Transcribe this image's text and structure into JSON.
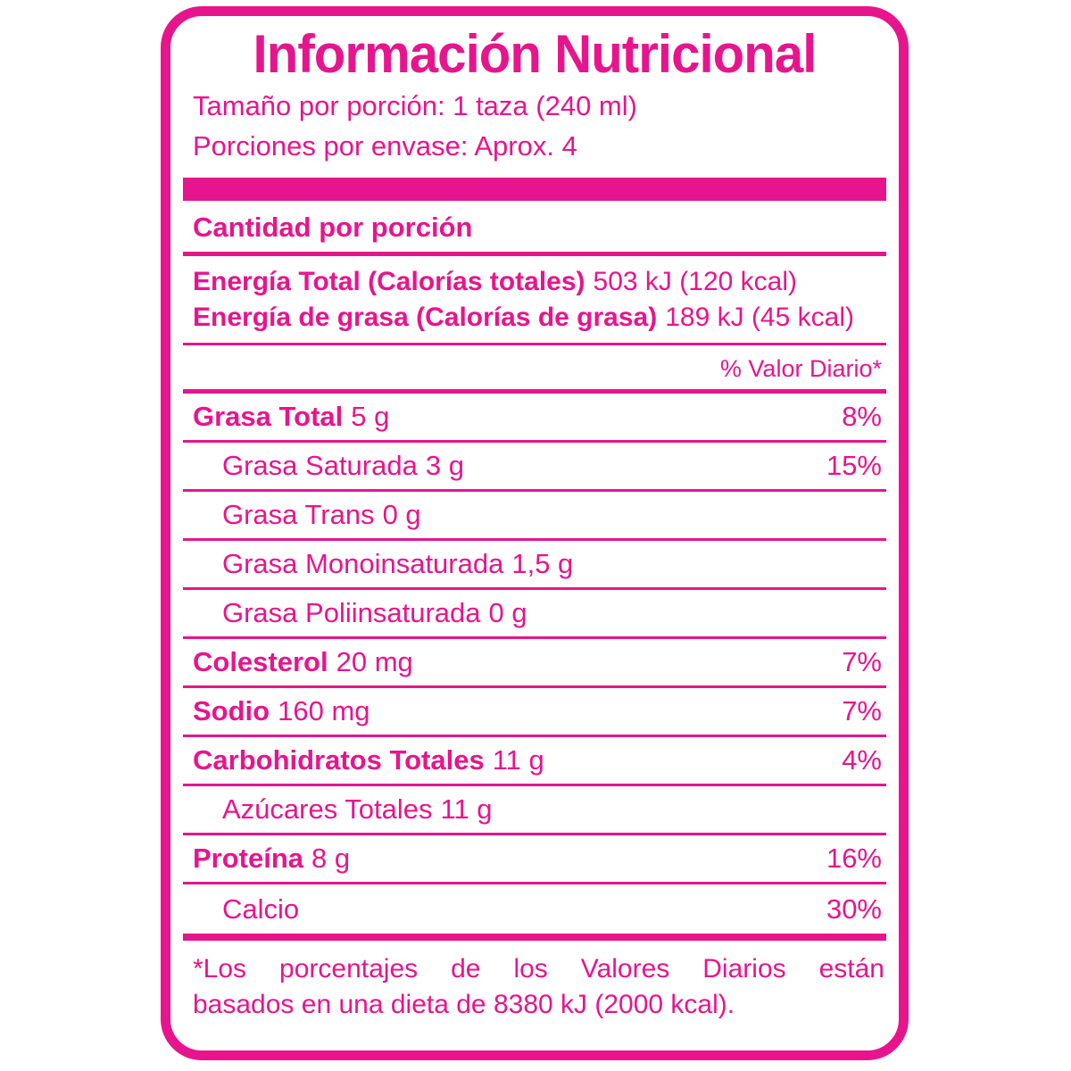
{
  "label": {
    "title": "Información Nutricional",
    "serving_size": "Tamaño por porción: 1 taza (240 ml)",
    "servings_per_container": "Porciones por envase: Aprox. 4",
    "amount_per_serving_header": "Cantidad por porción",
    "energy_lines": [
      {
        "label": "Energía Total (Calorías totales)",
        "value": "503 kJ (120 kcal)"
      },
      {
        "label": "Energía de grasa (Calorías de grasa)",
        "value": "189 kJ (45 kcal)"
      }
    ],
    "daily_value_header": "% Valor Diario*",
    "rows": [
      {
        "label": "Grasa Total",
        "amount": "5 g",
        "dv": "8%"
      },
      {
        "label": "Grasa Saturada",
        "amount": "3 g",
        "dv": ""
      },
      {
        "label": "Grasa Trans",
        "amount": "0 g",
        "dv": ""
      },
      {
        "label": "Grasa Monoinsaturada",
        "amount": "1,5 g",
        "dv": ""
      },
      {
        "label": "Grasa Poliinsaturada",
        "amount": "0 g",
        "dv": ""
      },
      {
        "label": "Colesterol",
        "amount": "20 mg",
        "dv": "7%"
      },
      {
        "label": "Sodio",
        "amount": "160 mg",
        "dv": "7%"
      },
      {
        "label": "Carbohidratos Totales",
        "amount": "11 g",
        "dv": "4%"
      },
      {
        "label": "Azúcares Totales",
        "amount": "11 g",
        "dv": ""
      },
      {
        "label": "Proteína",
        "amount": "8 g",
        "dv": "16%"
      },
      {
        "label": "Calcio",
        "amount": "",
        "dv": "30%"
      }
    ],
    "row_dvs_fix": {
      "saturada_dv": "15%"
    },
    "footnote_line1": "*Los porcentajes de los Valores Diarios están",
    "footnote_line2": "basados en una dieta de 8380 kJ (2000 kcal).",
    "colors": {
      "pink": "#E7158D",
      "background": "#FFFFFF"
    }
  }
}
